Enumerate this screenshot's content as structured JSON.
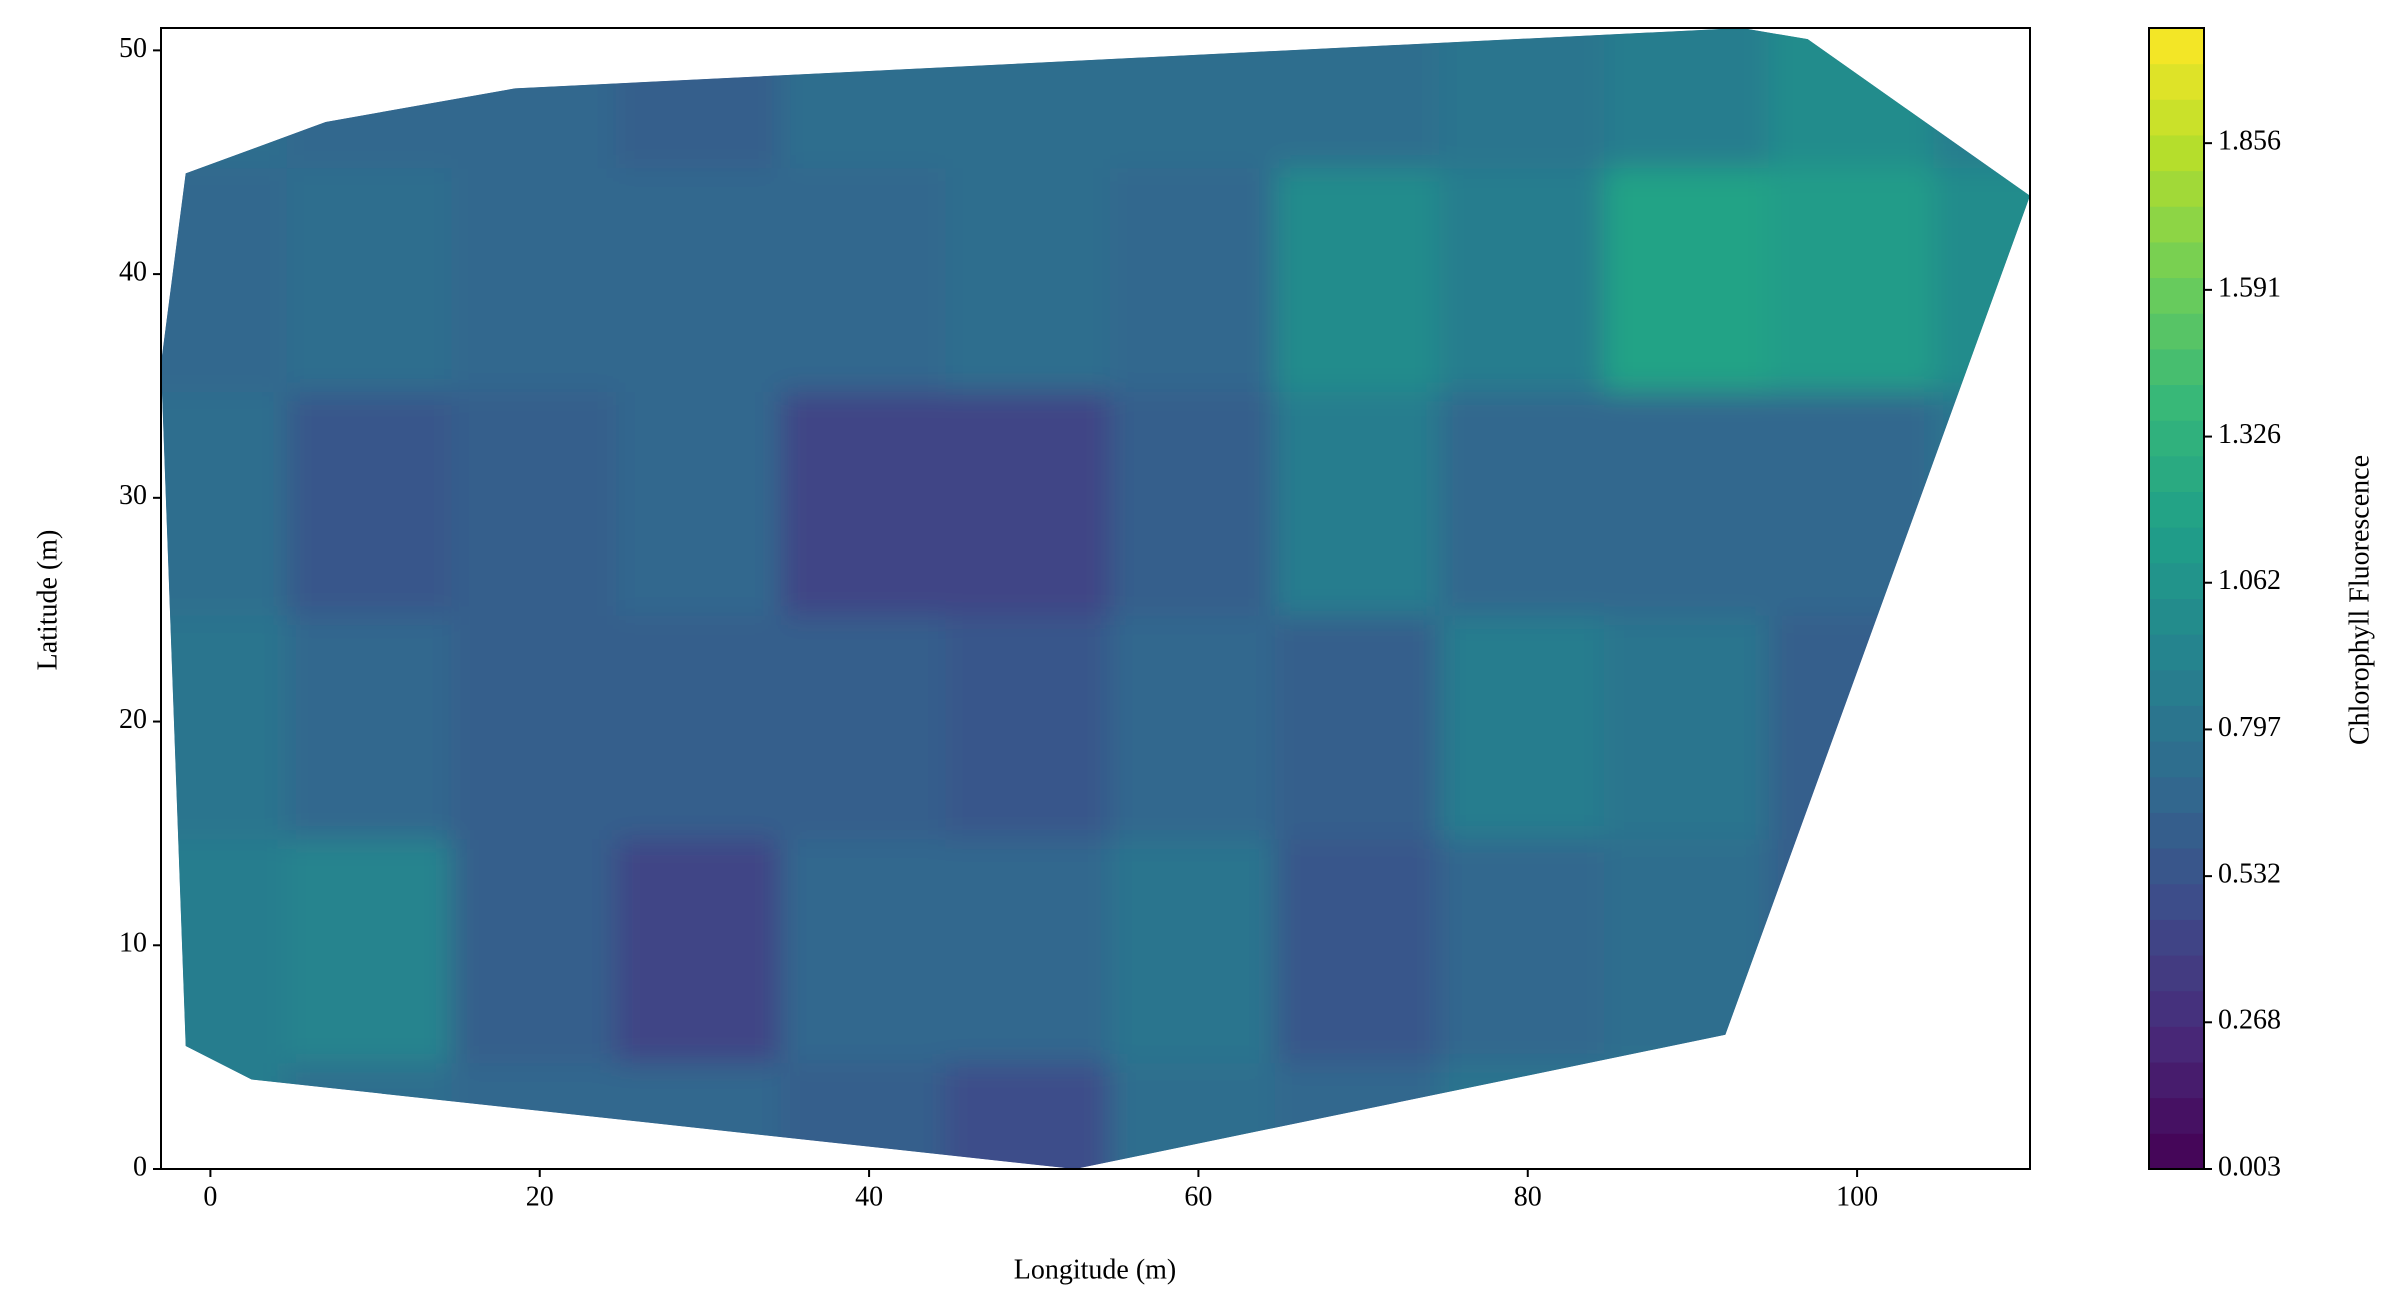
{
  "chart_data": {
    "type": "contourf",
    "xlabel": "Longitude (m)",
    "ylabel": "Latitude (m)",
    "colorbar_label": "Chlorophyll Fluorescence",
    "colormap": "viridis",
    "levels": 32,
    "xlim": [
      -3,
      110.5
    ],
    "ylim": [
      0,
      51
    ],
    "xticks": [
      0,
      20,
      40,
      60,
      80,
      100
    ],
    "yticks": [
      0,
      10,
      20,
      30,
      40,
      50
    ],
    "clim": [
      0.003,
      2.064
    ],
    "cticks": [
      0.003,
      0.268,
      0.532,
      0.797,
      1.062,
      1.326,
      1.591,
      1.856
    ],
    "boundary": {
      "x": [
        -1.5,
        7,
        18.5,
        93,
        97,
        110.5,
        92,
        52.5,
        2.5,
        -1.5,
        -3
      ],
      "y": [
        44.5,
        46.8,
        48.3,
        51,
        50.5,
        43.5,
        6,
        0,
        4,
        5.5,
        36
      ]
    },
    "x": [
      0,
      10,
      20,
      30,
      40,
      50,
      60,
      70,
      80,
      90,
      100,
      110
    ],
    "y": [
      0,
      10,
      20,
      30,
      40,
      50
    ],
    "values": [
      [
        0.85,
        0.75,
        0.7,
        0.7,
        0.6,
        0.5,
        0.75,
        0.65,
        0.8,
        0.8,
        0.7,
        0.7
      ],
      [
        0.85,
        0.95,
        0.6,
        0.4,
        0.65,
        0.65,
        0.8,
        0.55,
        0.7,
        0.75,
        0.6,
        0.7
      ],
      [
        0.8,
        0.65,
        0.6,
        0.6,
        0.6,
        0.55,
        0.7,
        0.6,
        0.9,
        0.8,
        0.6,
        0.8
      ],
      [
        0.75,
        0.55,
        0.6,
        0.65,
        0.45,
        0.4,
        0.6,
        0.85,
        0.65,
        0.7,
        0.7,
        0.8
      ],
      [
        0.7,
        0.75,
        0.65,
        0.7,
        0.7,
        0.75,
        0.7,
        1.0,
        0.9,
        1.2,
        1.1,
        1.0
      ],
      [
        0.75,
        0.7,
        0.7,
        0.6,
        0.75,
        0.75,
        0.75,
        0.75,
        0.8,
        0.9,
        1.0,
        0.9
      ]
    ]
  }
}
